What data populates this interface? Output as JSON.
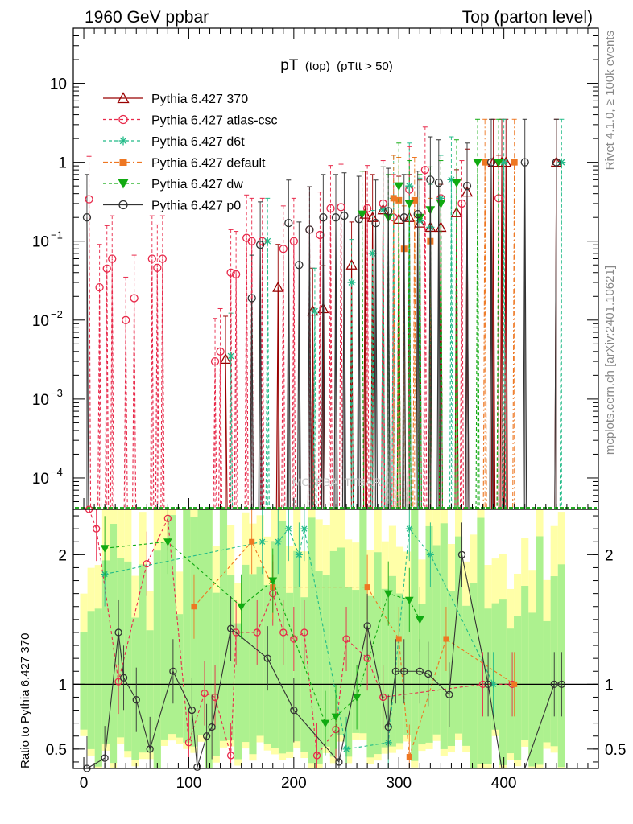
{
  "header": {
    "left": "1960 GeV ppbar",
    "right": "Top (parton level)"
  },
  "side_labels": {
    "rivet": "Rivet 4.1.0, ≥ 100k events",
    "mcplots": "mcplots.cern.ch [arXiv:2401.10621]"
  },
  "watermark": "MC_FBA_TTBAR",
  "chart_data": [
    {
      "type": "line",
      "panel": "main",
      "title": "pT",
      "title_suffix": "(top)",
      "title_cut": "(pTtt > 50)",
      "xlabel": "",
      "ylabel": "",
      "y_scale": "log",
      "xlim": [
        -10,
        490
      ],
      "ylim": [
        4e-05,
        50
      ],
      "y_ticks": [
        {
          "value": 10,
          "label": "10"
        },
        {
          "value": 1,
          "label": "1"
        },
        {
          "value": 0.1,
          "label": "10",
          "exp": "−1"
        },
        {
          "value": 0.01,
          "label": "10",
          "exp": "−2"
        },
        {
          "value": 0.001,
          "label": "10",
          "exp": "−3"
        },
        {
          "value": 0.0001,
          "label": "10",
          "exp": "−4"
        }
      ],
      "legend_position": "top-left",
      "series": [
        {
          "name": "Pythia 6.427 370",
          "color": "#990000",
          "marker": "triangle-open",
          "dash": "solid",
          "x": [
            135,
            185,
            218,
            228,
            255,
            268,
            275,
            285,
            300,
            310,
            320,
            330,
            340,
            355,
            365,
            390,
            398,
            402,
            450
          ],
          "y": [
            0.0032,
            0.026,
            0.013,
            0.014,
            0.05,
            0.22,
            0.2,
            0.25,
            0.19,
            0.2,
            0.17,
            0.15,
            0.15,
            0.23,
            0.42,
            1,
            1,
            1,
            1
          ]
        },
        {
          "name": "Pythia 6.427 atlas-csc",
          "color": "#e8294a",
          "marker": "circle-open",
          "dash": "dashed",
          "x": [
            5,
            15,
            22,
            27,
            40,
            48,
            65,
            70,
            75,
            125,
            130,
            140,
            145,
            155,
            160,
            170,
            190,
            200,
            215,
            225,
            235,
            245,
            270,
            285,
            295,
            310,
            325,
            340,
            360,
            395
          ],
          "y": [
            0.34,
            0.026,
            0.045,
            0.06,
            0.01,
            0.019,
            0.06,
            0.046,
            0.06,
            0.003,
            0.004,
            0.04,
            0.038,
            0.11,
            0.1,
            0.1,
            0.08,
            0.1,
            0.14,
            0.12,
            0.26,
            0.27,
            0.26,
            0.3,
            0.2,
            0.45,
            0.8,
            0.35,
            0.3,
            0.35
          ]
        },
        {
          "name": "Pythia 6.427 d6t",
          "color": "#22bb88",
          "marker": "star",
          "dash": "dashed",
          "x": [
            140,
            175,
            220,
            255,
            275,
            285,
            295,
            310,
            320,
            330,
            340,
            350,
            400,
            455
          ],
          "y": [
            0.0035,
            0.1,
            0.013,
            0.03,
            0.07,
            0.25,
            0.35,
            0.5,
            0.18,
            0.15,
            0.35,
            0.6,
            1,
            1
          ]
        },
        {
          "name": "Pythia 6.427 default",
          "color": "#ee7722",
          "marker": "square",
          "dash": "dashdot",
          "x": [
            295,
            300,
            305,
            315,
            330,
            382,
            410
          ],
          "y": [
            0.35,
            0.33,
            0.08,
            0.33,
            0.1,
            1,
            1
          ]
        },
        {
          "name": "Pythia 6.427 dw",
          "color": "#11aa11",
          "marker": "triangle-down",
          "dash": "dashed",
          "x": [
            265,
            290,
            300,
            310,
            320,
            330,
            340,
            355,
            375,
            395
          ],
          "y": [
            0.22,
            0.2,
            0.5,
            0.3,
            0.2,
            0.25,
            0.3,
            0.55,
            1,
            1
          ]
        },
        {
          "name": "Pythia 6.427 p0",
          "color": "#333333",
          "marker": "circle-open",
          "dash": "solid",
          "x": [
            3,
            160,
            168,
            195,
            205,
            215,
            228,
            240,
            248,
            262,
            278,
            290,
            305,
            318,
            330,
            338,
            365,
            388,
            420,
            450
          ],
          "y": [
            0.2,
            0.019,
            0.09,
            0.17,
            0.05,
            0.14,
            0.2,
            0.2,
            0.21,
            0.19,
            0.17,
            0.24,
            0.2,
            0.22,
            0.6,
            0.55,
            0.5,
            1,
            1,
            1
          ]
        }
      ]
    },
    {
      "type": "line",
      "panel": "ratio",
      "xlabel": "",
      "ylabel": "Ratio to Pythia 6.427 370",
      "xlim": [
        -10,
        490
      ],
      "ylim": [
        0.35,
        2.35
      ],
      "x_ticks": [
        0,
        100,
        200,
        300,
        400
      ],
      "y_ticks": [
        0.5,
        1,
        2
      ],
      "reference": 1,
      "series": [
        {
          "name": "Pythia 6.427 atlas-csc",
          "color": "#e8294a",
          "marker": "circle-open",
          "x": [
            5,
            12,
            33,
            60,
            80,
            100,
            115,
            125,
            140,
            145,
            165,
            180,
            190,
            200,
            210,
            222,
            240,
            250,
            270,
            285,
            380,
            408
          ],
          "y": [
            2.35,
            2.2,
            1.02,
            1.93,
            2.28,
            0.55,
            0.93,
            0.9,
            0.45,
            1.4,
            1.4,
            1.7,
            1.4,
            1.35,
            1.4,
            0.45,
            0.65,
            1.35,
            1.2,
            0.9,
            1,
            1
          ]
        },
        {
          "name": "Pythia 6.427 d6t",
          "color": "#22bb88",
          "marker": "star",
          "x": [
            20,
            170,
            185,
            195,
            205,
            210,
            250,
            290,
            310,
            330,
            390
          ],
          "y": [
            1.85,
            2.1,
            2.1,
            2.2,
            2.0,
            2.2,
            0.5,
            0.55,
            2.2,
            2.0,
            1
          ]
        },
        {
          "name": "Pythia 6.427 default",
          "color": "#ee7722",
          "marker": "square",
          "x": [
            105,
            160,
            180,
            270,
            300,
            310,
            345,
            410
          ],
          "y": [
            1.6,
            2.1,
            1.75,
            1.75,
            1.35,
            0.44,
            1.35,
            1
          ]
        },
        {
          "name": "Pythia 6.427 dw",
          "color": "#11aa11",
          "marker": "triangle-down",
          "x": [
            20,
            80,
            150,
            180,
            230,
            240,
            260,
            290,
            310,
            320
          ],
          "y": [
            2.05,
            2.1,
            1.6,
            1.8,
            0.7,
            0.75,
            0.9,
            1.7,
            1.65,
            1.5
          ]
        },
        {
          "name": "Pythia 6.427 p0",
          "color": "#333333",
          "marker": "circle-open",
          "x": [
            3,
            20,
            33,
            38,
            50,
            63,
            85,
            103,
            108,
            117,
            122,
            140,
            175,
            200,
            243,
            270,
            290,
            297,
            305,
            320,
            328,
            348,
            360,
            385,
            398,
            420,
            448,
            455
          ],
          "y": [
            0.35,
            0.43,
            1.4,
            1.05,
            0.88,
            0.5,
            1.1,
            0.8,
            0.36,
            0.6,
            0.67,
            1.43,
            1.2,
            0.8,
            0.4,
            1.45,
            0.67,
            1.1,
            1.1,
            1.1,
            1.08,
            0.92,
            2.0,
            1,
            0.0,
            0.0,
            1,
            1
          ]
        }
      ]
    }
  ]
}
